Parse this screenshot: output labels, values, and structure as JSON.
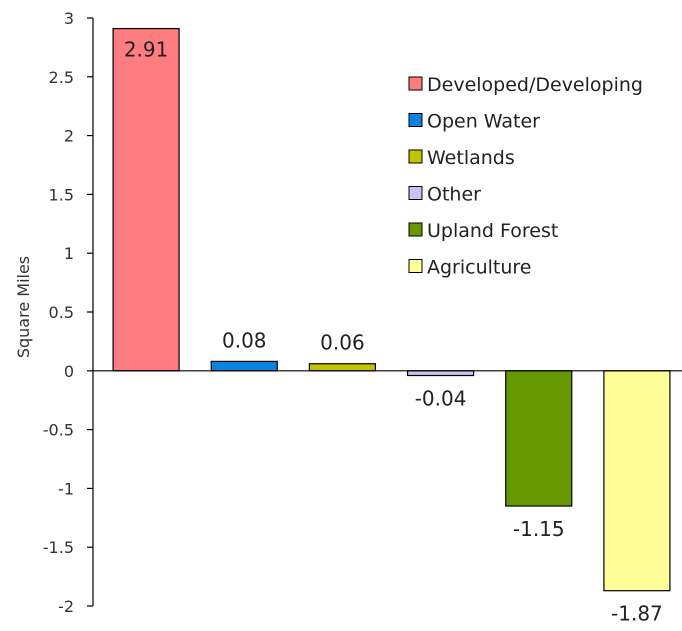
{
  "chart_data": {
    "type": "bar",
    "title": "",
    "xlabel": "",
    "ylabel": "Square Miles",
    "ylim": [
      -2,
      3
    ],
    "yticks": [
      3,
      2.5,
      2,
      1.5,
      1,
      0.5,
      0,
      -0.5,
      -1,
      -1.5,
      -2
    ],
    "yticks_text": [
      "3",
      "2.5",
      "2",
      "1.5",
      "1",
      "0.5",
      "0",
      "-0.5",
      "-1",
      "-1.5",
      "-2"
    ],
    "grid": false,
    "legend_position": "top-right",
    "categories": [
      "Developed/Developing",
      "Open Water",
      "Wetlands",
      "Other",
      "Upland Forest",
      "Agriculture"
    ],
    "values": [
      2.91,
      0.08,
      0.06,
      -0.04,
      -1.15,
      -1.87
    ],
    "value_labels": [
      "2.91",
      "0.08",
      "0.06",
      "-0.04",
      "-1.15",
      "-1.87"
    ],
    "colors": [
      "#ff7c80",
      "#0a84e0",
      "#c4c400",
      "#c7c4f2",
      "#669900",
      "#ffff99"
    ]
  }
}
